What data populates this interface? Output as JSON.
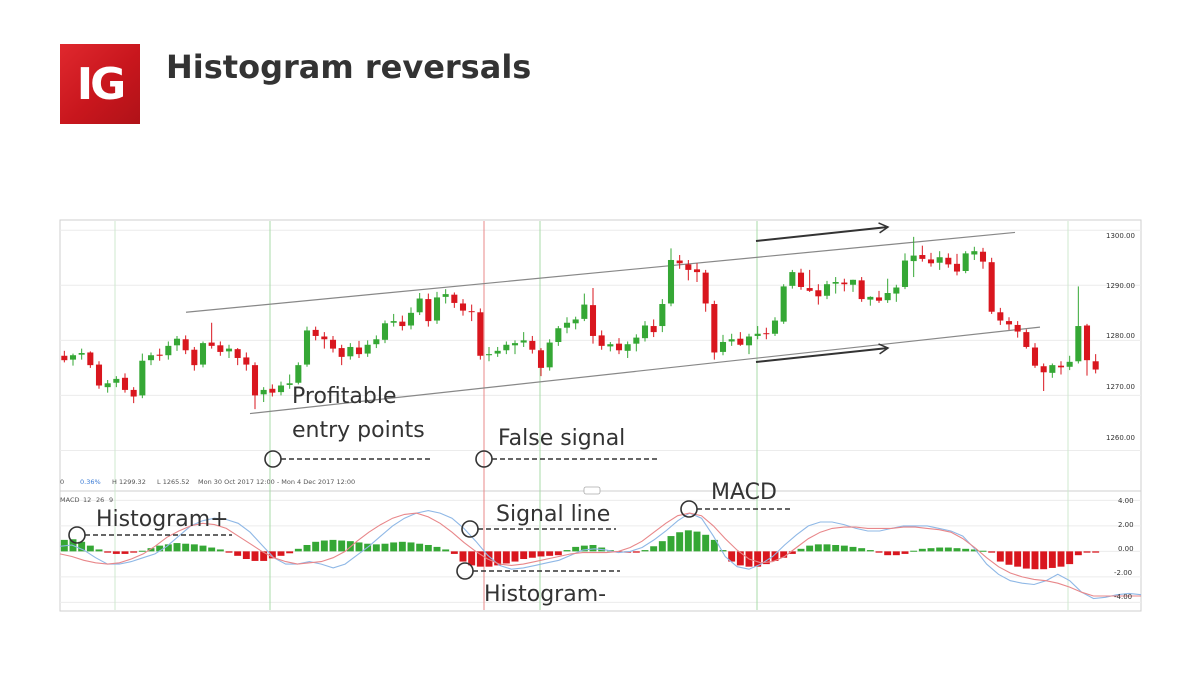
{
  "header": {
    "logo_text": "IG",
    "title": "Histogram reversals",
    "brand_color": "#d42027"
  },
  "price_panel": {
    "info": {
      "pct": "0.36%",
      "high": "H 1299.32",
      "low": "L 1265.52",
      "range": "Mon 30 Oct 2017 12:00 - Mon 4 Dec 2017 12:00"
    }
  },
  "macd_panel": {
    "label": "MACD",
    "params": [
      "12",
      "26",
      "9"
    ]
  },
  "annotations": {
    "profitable_line1": "Profitable",
    "profitable_line2": "entry points",
    "false_signal": "False signal",
    "histogram_plus": "Histogram+",
    "signal_line": "Signal line",
    "macd": "MACD",
    "histogram_minus": "Histogram-"
  },
  "chart_data": [
    {
      "type": "candlestick",
      "panel": "price",
      "y_ticks": [
        "1300.00",
        "1290.00",
        "1280.00",
        "1270.00",
        "1260.00"
      ],
      "ylim": [
        1253,
        1301.5
      ],
      "up_color": "#35a735",
      "down_color": "#d9161e",
      "candles": [
        [
          1277.2,
          1278.1,
          1276.0,
          1276.4
        ],
        [
          1276.5,
          1277.6,
          1275.4,
          1277.3
        ],
        [
          1277.4,
          1278.5,
          1276.5,
          1277.7
        ],
        [
          1277.8,
          1278.0,
          1275.0,
          1275.5
        ],
        [
          1275.6,
          1276.2,
          1271.2,
          1271.8
        ],
        [
          1271.5,
          1272.8,
          1270.5,
          1272.2
        ],
        [
          1272.3,
          1273.5,
          1271.5,
          1273.0
        ],
        [
          1273.2,
          1274.0,
          1270.5,
          1271.0
        ],
        [
          1271.0,
          1271.5,
          1268.6,
          1269.8
        ],
        [
          1270.0,
          1277.6,
          1269.5,
          1276.3
        ],
        [
          1276.4,
          1277.8,
          1275.5,
          1277.3
        ],
        [
          1277.4,
          1278.5,
          1276.3,
          1277.2
        ],
        [
          1277.3,
          1279.8,
          1276.5,
          1279.0
        ],
        [
          1279.1,
          1280.8,
          1278.1,
          1280.3
        ],
        [
          1280.2,
          1280.9,
          1277.5,
          1278.2
        ],
        [
          1278.3,
          1278.8,
          1274.5,
          1275.5
        ],
        [
          1275.6,
          1279.8,
          1275.1,
          1279.5
        ],
        [
          1279.6,
          1283.2,
          1278.5,
          1279.0
        ],
        [
          1279.1,
          1279.8,
          1277.2,
          1277.9
        ],
        [
          1278.0,
          1279.2,
          1276.8,
          1278.5
        ],
        [
          1278.4,
          1278.6,
          1275.5,
          1276.8
        ],
        [
          1276.9,
          1277.8,
          1274.5,
          1275.6
        ],
        [
          1275.5,
          1276.0,
          1267.5,
          1270.0
        ],
        [
          1270.2,
          1271.5,
          1268.8,
          1271.0
        ],
        [
          1271.2,
          1272.0,
          1269.8,
          1270.5
        ],
        [
          1270.6,
          1272.5,
          1270.0,
          1271.8
        ],
        [
          1271.9,
          1273.8,
          1271.2,
          1272.2
        ],
        [
          1272.3,
          1276.0,
          1272.0,
          1275.5
        ],
        [
          1275.6,
          1282.5,
          1275.2,
          1281.8
        ],
        [
          1281.9,
          1282.5,
          1280.0,
          1280.8
        ],
        [
          1280.7,
          1281.5,
          1278.5,
          1280.2
        ],
        [
          1280.1,
          1280.8,
          1277.8,
          1278.5
        ],
        [
          1278.6,
          1279.2,
          1275.5,
          1277.0
        ],
        [
          1277.1,
          1279.5,
          1276.5,
          1278.8
        ],
        [
          1278.7,
          1279.9,
          1276.8,
          1277.5
        ],
        [
          1277.6,
          1280.0,
          1277.0,
          1279.2
        ],
        [
          1279.3,
          1280.9,
          1278.6,
          1280.2
        ],
        [
          1280.1,
          1283.6,
          1279.5,
          1283.1
        ],
        [
          1283.2,
          1284.8,
          1282.5,
          1283.5
        ],
        [
          1283.4,
          1284.5,
          1281.8,
          1282.6
        ],
        [
          1282.7,
          1286.0,
          1282.0,
          1285.0
        ],
        [
          1285.1,
          1288.6,
          1284.6,
          1287.6
        ],
        [
          1287.5,
          1288.5,
          1282.5,
          1283.5
        ],
        [
          1283.6,
          1288.8,
          1283.0,
          1287.8
        ],
        [
          1287.9,
          1289.3,
          1286.7,
          1288.4
        ],
        [
          1288.3,
          1288.7,
          1285.9,
          1286.8
        ],
        [
          1286.7,
          1287.5,
          1284.5,
          1285.4
        ],
        [
          1285.3,
          1286.5,
          1283.5,
          1285.2
        ],
        [
          1285.1,
          1285.8,
          1276.5,
          1277.2
        ],
        [
          1277.3,
          1278.8,
          1276.2,
          1277.5
        ],
        [
          1277.6,
          1278.8,
          1277.0,
          1278.1
        ],
        [
          1278.2,
          1279.8,
          1277.5,
          1279.2
        ],
        [
          1279.1,
          1280.0,
          1277.5,
          1279.5
        ],
        [
          1279.6,
          1281.5,
          1278.8,
          1280.0
        ],
        [
          1279.9,
          1280.8,
          1277.6,
          1278.3
        ],
        [
          1278.2,
          1278.6,
          1273.5,
          1275.0
        ],
        [
          1275.1,
          1280.2,
          1274.5,
          1279.6
        ],
        [
          1279.7,
          1282.6,
          1279.0,
          1282.2
        ],
        [
          1282.3,
          1284.2,
          1281.3,
          1283.2
        ],
        [
          1283.1,
          1284.3,
          1282.0,
          1283.8
        ],
        [
          1283.9,
          1288.5,
          1283.5,
          1286.5
        ],
        [
          1286.4,
          1289.5,
          1279.4,
          1280.8
        ],
        [
          1280.9,
          1281.8,
          1278.3,
          1279.0
        ],
        [
          1278.9,
          1279.7,
          1278.0,
          1279.3
        ],
        [
          1279.4,
          1280.4,
          1277.5,
          1278.2
        ],
        [
          1278.1,
          1279.8,
          1276.8,
          1279.3
        ],
        [
          1279.4,
          1281.1,
          1278.0,
          1280.5
        ],
        [
          1280.4,
          1283.5,
          1279.8,
          1282.7
        ],
        [
          1282.6,
          1283.8,
          1280.6,
          1281.5
        ],
        [
          1282.6,
          1287.5,
          1281.5,
          1286.6
        ],
        [
          1286.7,
          1296.7,
          1286.2,
          1294.6
        ],
        [
          1294.5,
          1295.5,
          1293.0,
          1294.0
        ],
        [
          1293.8,
          1294.6,
          1290.9,
          1292.8
        ],
        [
          1292.9,
          1294.0,
          1290.6,
          1292.4
        ],
        [
          1292.3,
          1292.8,
          1285.2,
          1286.7
        ],
        [
          1286.6,
          1287.2,
          1276.5,
          1277.8
        ],
        [
          1277.9,
          1281.0,
          1277.3,
          1279.7
        ],
        [
          1279.8,
          1281.2,
          1279.0,
          1280.2
        ],
        [
          1280.3,
          1281.5,
          1279.0,
          1279.2
        ],
        [
          1279.1,
          1281.2,
          1277.5,
          1280.7
        ],
        [
          1280.8,
          1282.6,
          1280.2,
          1281.2
        ],
        [
          1281.3,
          1282.3,
          1280.2,
          1281.2
        ],
        [
          1281.2,
          1284.2,
          1280.8,
          1283.6
        ],
        [
          1283.4,
          1290.2,
          1283.0,
          1289.8
        ],
        [
          1289.9,
          1292.8,
          1289.4,
          1292.4
        ],
        [
          1292.3,
          1293.0,
          1289.2,
          1289.7
        ],
        [
          1289.5,
          1292.8,
          1288.8,
          1289.0
        ],
        [
          1289.1,
          1290.2,
          1286.5,
          1288.0
        ],
        [
          1288.1,
          1290.8,
          1287.5,
          1290.2
        ],
        [
          1290.3,
          1291.5,
          1288.5,
          1290.6
        ],
        [
          1290.5,
          1291.2,
          1288.9,
          1290.2
        ],
        [
          1290.1,
          1291.0,
          1288.8,
          1291.0
        ],
        [
          1290.9,
          1291.5,
          1287.0,
          1287.5
        ],
        [
          1287.4,
          1288.0,
          1286.3,
          1287.9
        ],
        [
          1287.8,
          1289.0,
          1286.8,
          1287.2
        ],
        [
          1287.3,
          1291.2,
          1286.8,
          1288.6
        ],
        [
          1288.5,
          1290.1,
          1287.0,
          1289.6
        ],
        [
          1289.7,
          1295.8,
          1289.3,
          1294.5
        ],
        [
          1294.4,
          1298.8,
          1291.5,
          1295.4
        ],
        [
          1295.5,
          1297.2,
          1294.3,
          1294.8
        ],
        [
          1294.7,
          1295.9,
          1293.4,
          1294.0
        ],
        [
          1294.1,
          1296.2,
          1292.8,
          1295.1
        ],
        [
          1295.0,
          1295.8,
          1293.2,
          1293.8
        ],
        [
          1293.9,
          1295.7,
          1291.8,
          1292.5
        ],
        [
          1292.6,
          1296.2,
          1292.2,
          1295.8
        ],
        [
          1295.6,
          1297.0,
          1294.6,
          1296.2
        ],
        [
          1296.1,
          1296.8,
          1293.0,
          1294.3
        ],
        [
          1294.2,
          1295.0,
          1284.8,
          1285.2
        ],
        [
          1285.1,
          1285.9,
          1282.8,
          1283.6
        ],
        [
          1283.5,
          1284.2,
          1281.9,
          1282.9
        ],
        [
          1282.8,
          1283.5,
          1280.5,
          1281.6
        ],
        [
          1281.5,
          1282.0,
          1278.5,
          1278.8
        ],
        [
          1278.7,
          1279.5,
          1275.0,
          1275.4
        ],
        [
          1275.3,
          1275.8,
          1270.8,
          1274.2
        ],
        [
          1274.1,
          1275.8,
          1273.2,
          1275.5
        ],
        [
          1275.4,
          1276.2,
          1273.8,
          1275.1
        ],
        [
          1275.2,
          1277.2,
          1274.6,
          1276.1
        ],
        [
          1276.2,
          1289.8,
          1275.8,
          1282.6
        ],
        [
          1282.7,
          1283.0,
          1273.6,
          1276.4
        ],
        [
          1276.2,
          1277.5,
          1274.0,
          1274.7
        ]
      ],
      "trendlines": [
        {
          "from": [
            1285.1,
            1
          ],
          "to": [
            1299.6,
            2
          ]
        },
        {
          "from": [
            1266.7,
            1
          ],
          "to": [
            1282.4,
            2
          ]
        }
      ]
    },
    {
      "type": "histogram+lines",
      "panel": "macd",
      "title": "MACD",
      "y_ticks": [
        "4.00",
        "2.00",
        "0.00",
        "-2.00",
        "-4.00"
      ],
      "ylim": [
        -4.6,
        4.5
      ],
      "histogram": [
        0.9,
        0.95,
        0.75,
        0.45,
        0.15,
        -0.1,
        -0.2,
        -0.2,
        -0.1,
        0.05,
        0.25,
        0.45,
        0.55,
        0.65,
        0.6,
        0.55,
        0.45,
        0.3,
        0.15,
        -0.1,
        -0.35,
        -0.6,
        -0.75,
        -0.75,
        -0.55,
        -0.35,
        -0.15,
        0.2,
        0.5,
        0.75,
        0.85,
        0.9,
        0.85,
        0.8,
        0.7,
        0.6,
        0.55,
        0.6,
        0.7,
        0.75,
        0.7,
        0.6,
        0.5,
        0.35,
        0.15,
        -0.2,
        -0.8,
        -1.1,
        -1.2,
        -1.2,
        -1.1,
        -0.95,
        -0.8,
        -0.6,
        -0.5,
        -0.4,
        -0.35,
        -0.3,
        0.1,
        0.35,
        0.45,
        0.5,
        0.3,
        0.1,
        -0.05,
        -0.1,
        -0.1,
        0.1,
        0.4,
        0.8,
        1.2,
        1.5,
        1.65,
        1.55,
        1.3,
        0.9,
        0.1,
        -0.8,
        -1.1,
        -1.2,
        -1.2,
        -1.0,
        -0.75,
        -0.5,
        -0.2,
        0.2,
        0.45,
        0.55,
        0.55,
        0.5,
        0.45,
        0.35,
        0.25,
        0.1,
        -0.1,
        -0.3,
        -0.3,
        -0.2,
        0.05,
        0.2,
        0.25,
        0.3,
        0.3,
        0.25,
        0.2,
        0.15,
        0.05,
        -0.1,
        -0.8,
        -1.05,
        -1.2,
        -1.35,
        -1.4,
        -1.4,
        -1.3,
        -1.2,
        -1.0,
        -0.3,
        -0.1,
        -0.1
      ],
      "series": [
        {
          "color": "#8fb8e6",
          "values": [
            0.4,
            0.5,
            0.1,
            -0.5,
            -1.0,
            -1.0,
            -0.8,
            -0.5,
            -0.2,
            0.4,
            1.2,
            2.0,
            2.4,
            2.6,
            2.5,
            2.2,
            1.5,
            0.5,
            -0.5,
            -1.0,
            -1.0,
            -0.8,
            -1.0,
            -1.3,
            -1.0,
            -0.3,
            0.4,
            1.2,
            2.0,
            2.6,
            3.0,
            3.2,
            3.0,
            2.6,
            1.8,
            0.8,
            -0.3,
            -1.1,
            -1.4,
            -1.3,
            -1.1,
            -0.9,
            -0.7,
            -0.3,
            0.1,
            0.2,
            0.1,
            -0.1,
            0.0,
            0.3,
            0.9,
            1.6,
            2.4,
            3.0,
            2.6,
            1.2,
            -0.4,
            -1.2,
            -1.4,
            -1.0,
            -0.4,
            0.5,
            1.3,
            2.0,
            2.3,
            2.3,
            2.1,
            1.8,
            1.6,
            1.6,
            1.8,
            2.0,
            2.0,
            2.0,
            1.8,
            1.6,
            1.2,
            0.2,
            -1.0,
            -1.8,
            -2.3,
            -2.5,
            -2.6,
            -2.3,
            -1.8,
            -2.3,
            -3.2,
            -3.7,
            -3.6,
            -3.4,
            -3.3,
            -3.4
          ]
        },
        {
          "color": "#e8878a",
          "values": [
            -0.2,
            -0.4,
            -0.7,
            -0.9,
            -1.0,
            -0.9,
            -0.6,
            -0.2,
            0.4,
            1.1,
            1.6,
            2.0,
            2.2,
            2.1,
            1.8,
            1.2,
            0.6,
            0.0,
            -0.5,
            -0.8,
            -1.0,
            -0.9,
            -0.8,
            -0.5,
            0.0,
            0.8,
            1.5,
            2.1,
            2.6,
            2.9,
            3.0,
            2.7,
            2.2,
            1.5,
            0.7,
            0.0,
            -0.6,
            -1.0,
            -1.1,
            -1.0,
            -0.8,
            -0.6,
            -0.4,
            -0.2,
            -0.1,
            -0.1,
            -0.1,
            0.0,
            0.3,
            0.8,
            1.5,
            2.2,
            2.8,
            3.0,
            2.8,
            2.0,
            1.0,
            0.1,
            -0.6,
            -0.9,
            -0.8,
            -0.4,
            0.3,
            1.0,
            1.5,
            1.8,
            1.9,
            1.9,
            1.8,
            1.8,
            1.8,
            1.9,
            1.9,
            1.8,
            1.7,
            1.5,
            1.0,
            0.3,
            -0.5,
            -1.2,
            -1.7,
            -2.0,
            -2.2,
            -2.3,
            -2.5,
            -2.8,
            -3.2,
            -3.5,
            -3.5,
            -3.5,
            -3.5,
            -3.5
          ]
        }
      ]
    }
  ]
}
